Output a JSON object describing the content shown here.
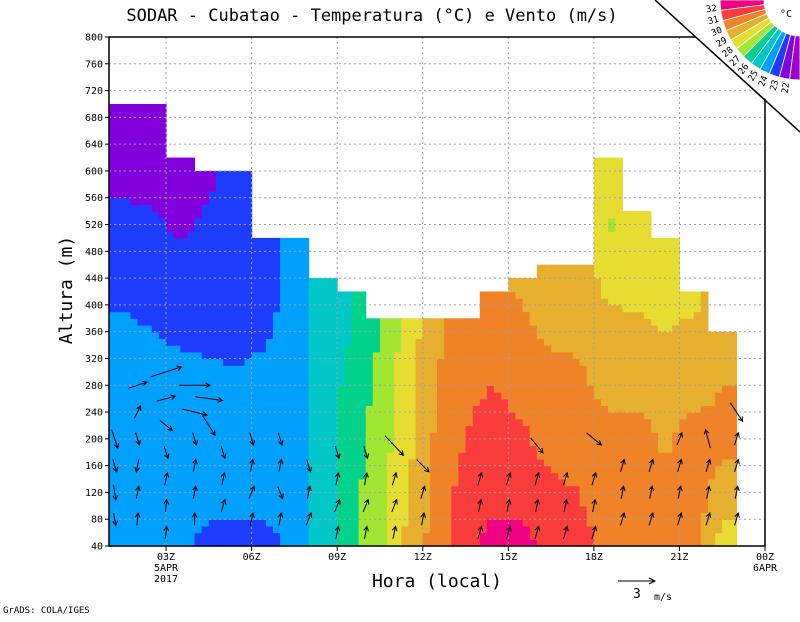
{
  "chart_data": {
    "type": "heatmap",
    "title": "SODAR - Cubatao - Temperatura (°C) e Vento (m/s)",
    "xlabel": "Hora (local)",
    "ylabel": "Altura (m)",
    "xlim": [
      1,
      24
    ],
    "ylim": [
      40,
      800
    ],
    "grid": true,
    "x_ticks": [
      {
        "hour": 3,
        "label": "03Z",
        "sub1": "5APR",
        "sub2": "2017"
      },
      {
        "hour": 6,
        "label": "06Z"
      },
      {
        "hour": 9,
        "label": "09Z"
      },
      {
        "hour": 12,
        "label": "12Z"
      },
      {
        "hour": 15,
        "label": "15Z"
      },
      {
        "hour": 18,
        "label": "18Z"
      },
      {
        "hour": 21,
        "label": "21Z"
      },
      {
        "hour": 24,
        "label": "00Z",
        "sub1": "6APR"
      }
    ],
    "y_ticks": [
      40,
      80,
      120,
      160,
      200,
      240,
      280,
      320,
      360,
      400,
      440,
      480,
      520,
      560,
      600,
      640,
      680,
      720,
      760,
      800
    ],
    "colorbar": {
      "unit": "°C",
      "levels": [
        22,
        23,
        24,
        25,
        26,
        27,
        28,
        29,
        30,
        31,
        32
      ],
      "colors": [
        "#a000c8",
        "#8200dc",
        "#1e3cff",
        "#00a0ff",
        "#00c8c8",
        "#00d28c",
        "#a0e632",
        "#e6dc32",
        "#e6af2d",
        "#f08228",
        "#fa3c3c",
        "#f00082"
      ]
    },
    "grid_levels_m": [
      40,
      120,
      200,
      280,
      360,
      440,
      520,
      600,
      680
    ],
    "columns": [
      {
        "hour": 1,
        "top": 700,
        "t": [
          24.5,
          24.5,
          24.5,
          24.5,
          24.3,
          23.5,
          23.5,
          22.5,
          22.5
        ]
      },
      {
        "hour": 2,
        "top": 700,
        "t": [
          24.3,
          24.5,
          24.5,
          24.5,
          24,
          23.5,
          23.2,
          22.5,
          22.3
        ]
      },
      {
        "hour": 3,
        "top": 620,
        "t": [
          24.5,
          24.5,
          24.5,
          24.5,
          23.8,
          23.5,
          22.8,
          22.5
        ]
      },
      {
        "hour": 4,
        "top": 600,
        "t": [
          23.5,
          24.5,
          24.5,
          24.5,
          23.5,
          23.5,
          23.2,
          22.8
        ]
      },
      {
        "hour": 5,
        "top": 600,
        "t": [
          23.4,
          24.5,
          24.5,
          24.3,
          23.5,
          23.5,
          23.5,
          23.5
        ]
      },
      {
        "hour": 6,
        "top": 500,
        "t": [
          23.5,
          24.5,
          24.5,
          24.5,
          23.8,
          23.5,
          23.5
        ]
      },
      {
        "hour": 7,
        "top": 500,
        "t": [
          24.5,
          24.5,
          24.5,
          24.5,
          24.5,
          24.5,
          24.5
        ]
      },
      {
        "hour": 8,
        "top": 440,
        "t": [
          25.5,
          25.3,
          25.3,
          25.5,
          25.5,
          25.5
        ]
      },
      {
        "hour": 9,
        "top": 420,
        "t": [
          26.8,
          26.7,
          26.5,
          26.3,
          26,
          25.8
        ]
      },
      {
        "hour": 10,
        "top": 380,
        "t": [
          27.8,
          27.6,
          27.5,
          27.3,
          27
        ]
      },
      {
        "hour": 11,
        "top": 380,
        "t": [
          29.3,
          29,
          28.7,
          28.6,
          28.5
        ]
      },
      {
        "hour": 12,
        "top": 380,
        "t": [
          30.5,
          30.3,
          30.2,
          30,
          29.8
        ]
      },
      {
        "hour": 13,
        "top": 380,
        "t": [
          31.5,
          31.5,
          31,
          30.8,
          30.5
        ]
      },
      {
        "hour": 14,
        "top": 420,
        "t": [
          32.5,
          31.6,
          31.5,
          31,
          30.5,
          30
        ]
      },
      {
        "hour": 15,
        "top": 440,
        "t": [
          32.3,
          31.6,
          31.2,
          30.6,
          30.2,
          29.8
        ]
      },
      {
        "hour": 16,
        "top": 460,
        "t": [
          31.6,
          31.3,
          30.5,
          30.4,
          29.8,
          29.5
        ]
      },
      {
        "hour": 17,
        "top": 460,
        "t": [
          31.5,
          31,
          30.5,
          30.2,
          29.8,
          29.3
        ]
      },
      {
        "hour": 18,
        "top": 620,
        "t": [
          30.5,
          30.3,
          30.5,
          29.6,
          29.2,
          28.8,
          27.8,
          28.5
        ]
      },
      {
        "hour": 19,
        "top": 540,
        "t": [
          30.3,
          30.3,
          30.5,
          29.5,
          29.2,
          28.7,
          28.5
        ]
      },
      {
        "hour": 20,
        "top": 500,
        "t": [
          30.4,
          30.3,
          29.8,
          29.5,
          29,
          28.5,
          28.5
        ]
      },
      {
        "hour": 21,
        "top": 420,
        "t": [
          30.5,
          30.5,
          30.5,
          29.5,
          29.2,
          28.5
        ]
      },
      {
        "hour": 22,
        "top": 360,
        "t": [
          28.5,
          29.5,
          30.3,
          30,
          29.5
        ]
      }
    ],
    "wind_vectors": [
      [
        1.2,
        200,
        0.5,
        -1.5
      ],
      [
        1.2,
        160,
        0.3,
        -1
      ],
      [
        1.2,
        120,
        0.2,
        -1.2
      ],
      [
        1.2,
        80,
        0.2,
        -1
      ],
      [
        2,
        280,
        1.5,
        0.5
      ],
      [
        2,
        240,
        0.5,
        1
      ],
      [
        2,
        200,
        0.3,
        -1
      ],
      [
        2,
        160,
        -0.2,
        -1
      ],
      [
        2,
        120,
        0.2,
        1
      ],
      [
        2,
        80,
        0.1,
        1
      ],
      [
        3,
        300,
        2.5,
        0.8
      ],
      [
        3,
        260,
        1.5,
        0.4
      ],
      [
        3,
        220,
        1,
        -0.8
      ],
      [
        3,
        180,
        0.3,
        -1
      ],
      [
        3,
        140,
        0.2,
        1
      ],
      [
        3,
        100,
        0.1,
        1
      ],
      [
        3,
        60,
        0.1,
        1
      ],
      [
        4,
        280,
        2.5,
        0
      ],
      [
        4,
        240,
        2,
        -0.5
      ],
      [
        4,
        200,
        0.3,
        -1
      ],
      [
        4,
        160,
        0.2,
        1
      ],
      [
        4,
        120,
        0.2,
        1
      ],
      [
        4,
        80,
        0,
        1
      ],
      [
        4.5,
        260,
        2.2,
        -0.3
      ],
      [
        4.5,
        220,
        1,
        -1.6
      ],
      [
        5,
        180,
        0.3,
        -1
      ],
      [
        5,
        140,
        0.2,
        1
      ],
      [
        5,
        100,
        0.3,
        1
      ],
      [
        6,
        200,
        0.3,
        -1
      ],
      [
        6,
        160,
        0.2,
        1
      ],
      [
        6,
        120,
        0.4,
        1
      ],
      [
        6,
        80,
        0.2,
        1
      ],
      [
        7,
        200,
        0.3,
        -1
      ],
      [
        7,
        160,
        0.2,
        1
      ],
      [
        7,
        120,
        0.4,
        -1
      ],
      [
        7,
        80,
        0.2,
        1
      ],
      [
        8,
        160,
        0.3,
        -1
      ],
      [
        8,
        120,
        0.2,
        1
      ],
      [
        8,
        80,
        0.4,
        1
      ],
      [
        9,
        180,
        0.3,
        -1
      ],
      [
        9,
        140,
        0.2,
        1
      ],
      [
        9,
        100,
        0.4,
        1
      ],
      [
        9,
        60,
        0.2,
        1
      ],
      [
        10,
        180,
        0.3,
        -1
      ],
      [
        10,
        140,
        0.2,
        1
      ],
      [
        10,
        100,
        0.4,
        1
      ],
      [
        10,
        60,
        0.2,
        1
      ],
      [
        11,
        190,
        1.5,
        -1.6
      ],
      [
        11,
        140,
        0.3,
        1
      ],
      [
        11,
        100,
        0.4,
        1
      ],
      [
        11,
        60,
        0.2,
        1
      ],
      [
        12,
        160,
        1,
        -1
      ],
      [
        12,
        120,
        0.3,
        1
      ],
      [
        12,
        80,
        0.2,
        1
      ],
      [
        14,
        140,
        0.3,
        1
      ],
      [
        14,
        100,
        0.2,
        1
      ],
      [
        14,
        60,
        0.3,
        1
      ],
      [
        15,
        140,
        0.3,
        1
      ],
      [
        15,
        100,
        0.2,
        1
      ],
      [
        15,
        60,
        0.3,
        1
      ],
      [
        16,
        190,
        1,
        -1.2
      ],
      [
        16,
        140,
        0.3,
        1
      ],
      [
        16,
        100,
        0.2,
        1
      ],
      [
        16,
        60,
        0.3,
        1
      ],
      [
        17,
        140,
        0.3,
        1
      ],
      [
        17,
        100,
        0.2,
        1
      ],
      [
        17,
        60,
        0.3,
        1
      ],
      [
        18,
        200,
        1.2,
        -1
      ],
      [
        18,
        140,
        0.3,
        1
      ],
      [
        18,
        100,
        0.2,
        1
      ],
      [
        18,
        60,
        0.3,
        1
      ],
      [
        19,
        160,
        0.3,
        1
      ],
      [
        19,
        120,
        0.2,
        1
      ],
      [
        19,
        80,
        0.3,
        1
      ],
      [
        20,
        160,
        0.3,
        1
      ],
      [
        20,
        120,
        0.2,
        1
      ],
      [
        20,
        80,
        0.3,
        1
      ],
      [
        21,
        200,
        0.4,
        1
      ],
      [
        21,
        160,
        0.3,
        1
      ],
      [
        21,
        120,
        0.2,
        1
      ],
      [
        21,
        80,
        0.3,
        1
      ],
      [
        22,
        200,
        -0.4,
        1.5
      ],
      [
        22,
        160,
        0.3,
        1
      ],
      [
        22,
        120,
        0.2,
        1
      ],
      [
        22,
        80,
        0.3,
        1
      ],
      [
        23,
        240,
        1,
        -1.5
      ],
      [
        23,
        200,
        0.3,
        1
      ],
      [
        23,
        160,
        0.3,
        1
      ],
      [
        23,
        120,
        0.2,
        1
      ],
      [
        23,
        80,
        0.3,
        1
      ]
    ],
    "reference_vector": {
      "value": 3,
      "label": "3",
      "unit": "m/s"
    }
  },
  "footer": {
    "credit": "GrADS: COLA/IGES"
  }
}
